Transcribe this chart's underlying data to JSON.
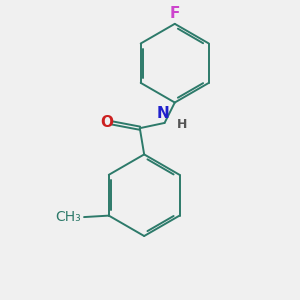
{
  "background_color": "#f0f0f0",
  "bond_color": "#2d7a6a",
  "atom_colors": {
    "F": "#cc44cc",
    "N": "#2020cc",
    "O": "#cc2020",
    "H": "#555555"
  },
  "font_size_atoms": 11,
  "font_size_H": 9,
  "lw": 1.4,
  "dbo": 0.05
}
